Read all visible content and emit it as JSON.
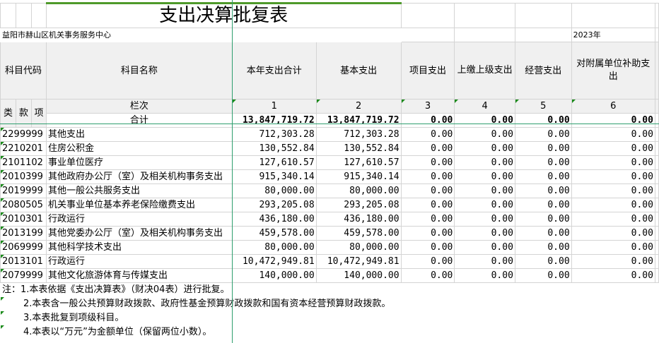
{
  "title": "支出决算批复表",
  "unit_name": "益阳市赫山区机关事务服务中心",
  "year": "2023年",
  "headers": {
    "code": "科目代码",
    "name": "科目名称",
    "lei": "类",
    "kuan": "款",
    "xiang": "项",
    "columns": [
      "本年支出合计",
      "基本支出",
      "项目支出",
      "上缴上级支出",
      "经营支出",
      "对附属单位补助支出"
    ],
    "lanci_label": "栏次",
    "lanci": [
      "1",
      "2",
      "3",
      "4",
      "5",
      "6"
    ]
  },
  "total": {
    "label": "合计",
    "values": [
      "13,847,719.72",
      "13,847,719.72",
      "0.00",
      "0.00",
      "0.00",
      "0.00"
    ]
  },
  "rows": [
    {
      "code": "2299999",
      "name": "其他支出",
      "values": [
        "712,303.28",
        "712,303.28",
        "0.00",
        "0.00",
        "0.00",
        "0.00"
      ]
    },
    {
      "code": "2210201",
      "name": "住房公积金",
      "values": [
        "130,552.84",
        "130,552.84",
        "0.00",
        "0.00",
        "0.00",
        "0.00"
      ]
    },
    {
      "code": "2101102",
      "name": "事业单位医疗",
      "values": [
        "127,610.57",
        "127,610.57",
        "0.00",
        "0.00",
        "0.00",
        "0.00"
      ]
    },
    {
      "code": "2010399",
      "name": "其他政府办公厅（室）及相关机构事务支出",
      "values": [
        "915,340.14",
        "915,340.14",
        "0.00",
        "0.00",
        "0.00",
        "0.00"
      ]
    },
    {
      "code": "2019999",
      "name": "其他一般公共服务支出",
      "values": [
        "80,000.00",
        "80,000.00",
        "0.00",
        "0.00",
        "0.00",
        "0.00"
      ]
    },
    {
      "code": "2080505",
      "name": "机关事业单位基本养老保险缴费支出",
      "values": [
        "293,205.08",
        "293,205.08",
        "0.00",
        "0.00",
        "0.00",
        "0.00"
      ]
    },
    {
      "code": "2010301",
      "name": "行政运行",
      "values": [
        "436,180.00",
        "436,180.00",
        "0.00",
        "0.00",
        "0.00",
        "0.00"
      ]
    },
    {
      "code": "2013199",
      "name": "其他党委办公厅（室）及相关机构事务支出",
      "values": [
        "459,578.00",
        "459,578.00",
        "0.00",
        "0.00",
        "0.00",
        "0.00"
      ]
    },
    {
      "code": "2069999",
      "name": "其他科学技术支出",
      "values": [
        "80,000.00",
        "80,000.00",
        "0.00",
        "0.00",
        "0.00",
        "0.00"
      ]
    },
    {
      "code": "2013101",
      "name": "行政运行",
      "values": [
        "10,472,949.81",
        "10,472,949.81",
        "0.00",
        "0.00",
        "0.00",
        "0.00"
      ]
    },
    {
      "code": "2079999",
      "name": "其他文化旅游体育与传媒支出",
      "values": [
        "140,000.00",
        "140,000.00",
        "0.00",
        "0.00",
        "0.00",
        "0.00"
      ]
    }
  ],
  "notes": [
    "注：1.本表依据《支出决算表》（财决04表）进行批复。",
    "2.本表含一般公共预算财政拨款、政府性基金预算财政拨款和国有资本经营预算财政拨款。",
    "3.本表批复到项级科目。",
    "4.本表以“万元”为金额单位（保留两位小数）。"
  ]
}
